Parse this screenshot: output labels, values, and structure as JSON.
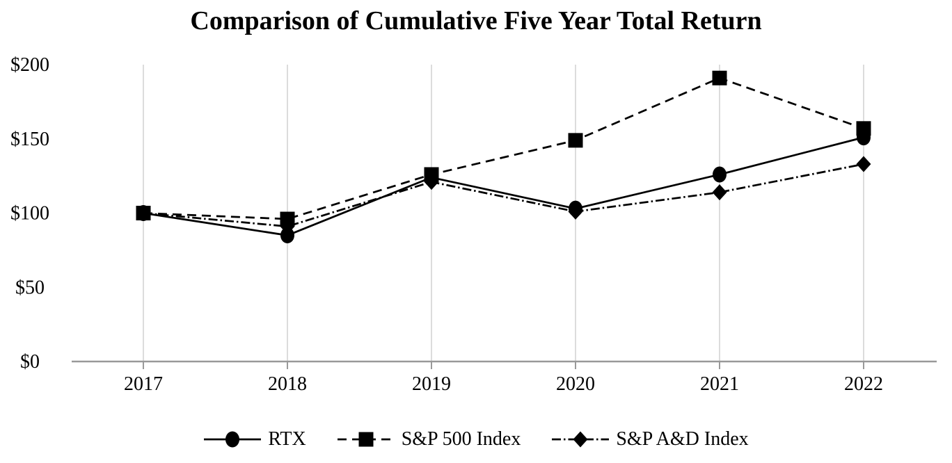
{
  "title": "Comparison of Cumulative Five Year Total Return",
  "chart_data": {
    "type": "line",
    "x": [
      2017,
      2018,
      2019,
      2020,
      2021,
      2022
    ],
    "series": [
      {
        "name": "RTX",
        "marker": "circle",
        "line_style": "solid",
        "values": [
          100,
          85,
          124,
          103,
          126,
          151
        ]
      },
      {
        "name": "S&P 500 Index",
        "marker": "square",
        "line_style": "dashed",
        "values": [
          100,
          96,
          126,
          149,
          191,
          157
        ]
      },
      {
        "name": "S&P A&D Index",
        "marker": "diamond",
        "line_style": "dash-dot",
        "values": [
          100,
          91,
          121,
          101,
          114,
          133
        ]
      }
    ],
    "xlabel": "",
    "ylabel": "",
    "ylim": [
      0,
      200
    ],
    "ytick_values": [
      0,
      50,
      100,
      150,
      200
    ],
    "ytick_labels": [
      "$0",
      "$50",
      "$100",
      "$150",
      "$200"
    ],
    "xtick_labels": [
      "2017",
      "2018",
      "2019",
      "2020",
      "2021",
      "2022"
    ],
    "grid": "vertical-only",
    "legend_position": "bottom",
    "colors": {
      "series": "#000000",
      "gridline": "#dcdcdc",
      "axis": "#999999",
      "text": "#000000"
    }
  }
}
